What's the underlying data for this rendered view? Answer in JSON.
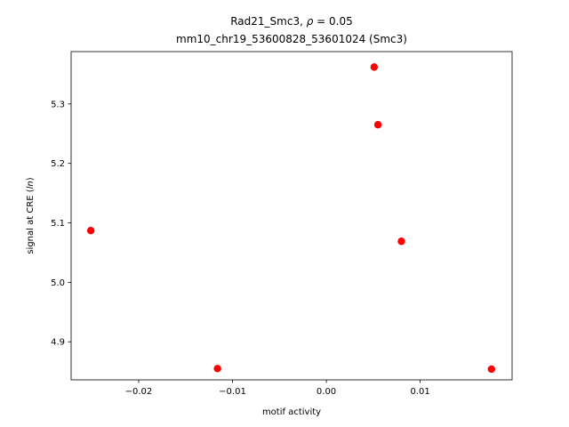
{
  "chart_data": {
    "type": "scatter",
    "title_line1_prefix": "Rad21_Smc3, ",
    "title_line1_rho": "ρ",
    "title_line1_suffix": " = 0.05",
    "title_line2": "mm10_chr19_53600828_53601024 (Smc3)",
    "xlabel": "motif activity",
    "ylabel_prefix": "signal at CRE (",
    "ylabel_italic": "ln",
    "ylabel_suffix": ")",
    "xlim": [
      -0.0272,
      0.0198
    ],
    "ylim": [
      4.836,
      5.388
    ],
    "xticks": [
      -0.02,
      -0.01,
      0.0,
      0.01
    ],
    "xtick_labels": [
      "−0.02",
      "−0.01",
      "0.00",
      "0.01"
    ],
    "yticks": [
      4.9,
      5.0,
      5.1,
      5.2,
      5.3
    ],
    "ytick_labels": [
      "4.9",
      "5.0",
      "5.1",
      "5.2",
      "5.3"
    ],
    "marker_color": "#ff0000",
    "points": [
      {
        "x": 0.0051,
        "y": 5.362
      },
      {
        "x": 0.0055,
        "y": 5.265
      },
      {
        "x": -0.0251,
        "y": 5.087
      },
      {
        "x": 0.008,
        "y": 5.069
      },
      {
        "x": -0.0116,
        "y": 4.855
      },
      {
        "x": 0.0176,
        "y": 4.854
      }
    ]
  }
}
